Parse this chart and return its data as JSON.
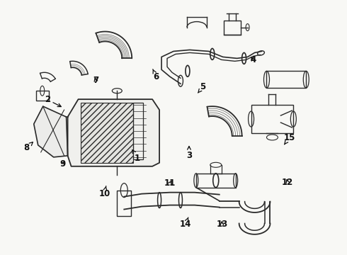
{
  "bg_color": "#f8f8f5",
  "line_color": "#2a2a2a",
  "text_color": "#111111",
  "figsize": [
    4.9,
    3.6
  ],
  "dpi": 100,
  "label_positions": {
    "1": [
      0.395,
      0.62,
      0.375,
      0.575
    ],
    "2": [
      0.135,
      0.39,
      0.185,
      0.425
    ],
    "3": [
      0.545,
      0.61,
      0.545,
      0.57
    ],
    "4": [
      0.73,
      0.235,
      0.72,
      0.21
    ],
    "5": [
      0.585,
      0.34,
      0.57,
      0.365
    ],
    "6": [
      0.45,
      0.3,
      0.44,
      0.27
    ],
    "7": [
      0.275,
      0.315,
      0.27,
      0.29
    ],
    "8": [
      0.075,
      0.58,
      0.095,
      0.555
    ],
    "9": [
      0.18,
      0.645,
      0.19,
      0.62
    ],
    "10": [
      0.3,
      0.76,
      0.305,
      0.73
    ],
    "11": [
      0.49,
      0.72,
      0.5,
      0.698
    ],
    "12": [
      0.83,
      0.715,
      0.825,
      0.69
    ],
    "13": [
      0.64,
      0.88,
      0.64,
      0.855
    ],
    "14": [
      0.535,
      0.88,
      0.543,
      0.853
    ],
    "15": [
      0.835,
      0.54,
      0.82,
      0.568
    ]
  }
}
